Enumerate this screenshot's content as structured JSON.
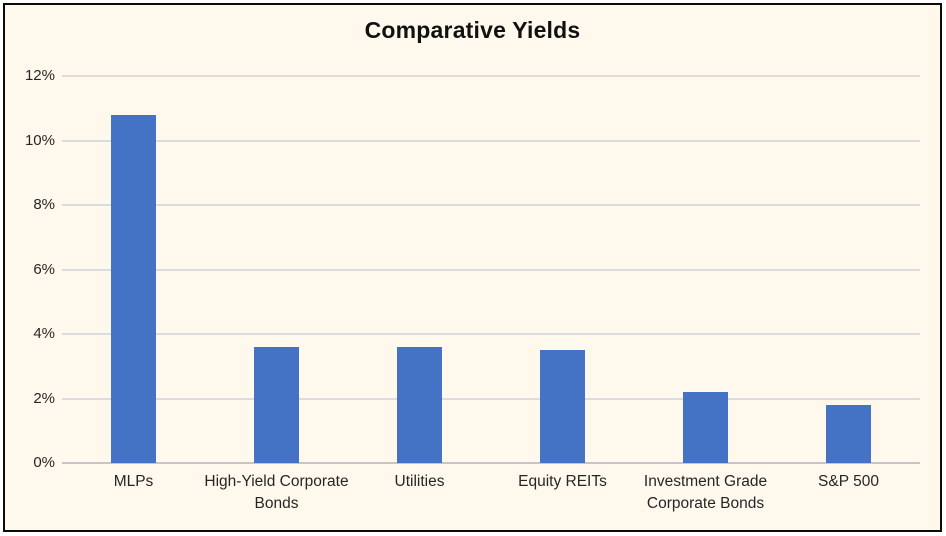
{
  "chart_style": {
    "background_color": "#FEF9EC",
    "border_color": "#0B0B0B",
    "bar_color": "#4472C4",
    "gridline_color": "#DCDCDC",
    "axis_line_color": "#C6C6C6",
    "text_color": "#262626",
    "title_color": "#111111"
  },
  "chart_data": {
    "type": "bar",
    "title": "Comparative Yields",
    "categories": [
      "MLPs",
      "High-Yield Corporate Bonds",
      "Utilities",
      "Equity REITs",
      "Investment Grade Corporate Bonds",
      "S&P 500"
    ],
    "values": [
      10.8,
      3.6,
      3.6,
      3.5,
      2.2,
      1.8
    ],
    "value_suffix": "%",
    "xlabel": "",
    "ylabel": "",
    "ylim": [
      0,
      12
    ],
    "ytick_step": 2,
    "ytick_labels": [
      "0%",
      "2%",
      "4%",
      "6%",
      "8%",
      "10%",
      "12%"
    ],
    "grid": true,
    "legend": false
  }
}
